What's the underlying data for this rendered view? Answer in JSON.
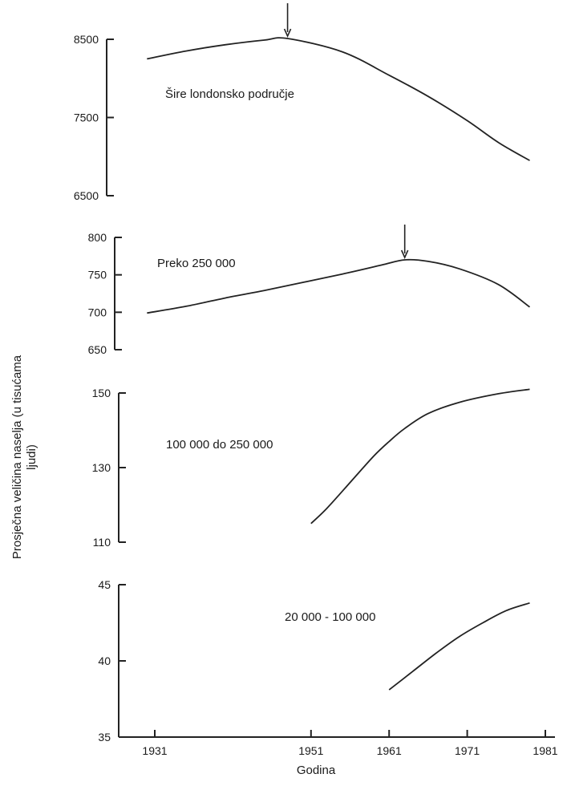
{
  "chart_data": {
    "type": "line",
    "ylabel_lines": [
      "Prosječna veličina naselja (u tisućama",
      "ljudi)"
    ],
    "xlabel": "Godina",
    "x_ticks": [
      "1931",
      "1951",
      "1961",
      "1971",
      "1981"
    ],
    "x_tick_values": [
      1931,
      1951,
      1961,
      1971,
      1981
    ],
    "line_color": "#222222",
    "panels": [
      {
        "name": "Šire londonsko područje",
        "y_ticks": [
          "8500",
          "7500",
          "6500"
        ],
        "y_tick_values": [
          8500,
          7500,
          6500
        ],
        "ylim": [
          6500,
          8500
        ],
        "x": [
          1930,
          1935,
          1940,
          1945,
          1948,
          1955,
          1961,
          1966,
          1971,
          1975,
          1979
        ],
        "y": [
          8250,
          8350,
          8430,
          8490,
          8510,
          8340,
          8040,
          7770,
          7460,
          7180,
          6950
        ],
        "peak_marker_x": 1948
      },
      {
        "name": "Preko 250 000",
        "y_ticks": [
          "800",
          "750",
          "700",
          "650"
        ],
        "y_tick_values": [
          800,
          750,
          700,
          650
        ],
        "ylim": [
          650,
          800
        ],
        "x": [
          1930,
          1935,
          1940,
          1945,
          1950,
          1955,
          1960,
          1963,
          1966,
          1970,
          1975,
          1979
        ],
        "y": [
          699,
          708,
          719,
          729,
          740,
          751,
          763,
          770,
          768,
          758,
          737,
          707
        ],
        "peak_marker_x": 1963
      },
      {
        "name": "100 000 do 250 000",
        "y_ticks": [
          "150",
          "130",
          "110"
        ],
        "y_tick_values": [
          150,
          130,
          110
        ],
        "ylim": [
          110,
          150
        ],
        "x": [
          1951,
          1953,
          1956,
          1959,
          1961,
          1963,
          1966,
          1970,
          1975,
          1979
        ],
        "y": [
          115,
          119,
          126,
          133,
          137,
          140.5,
          144.5,
          147.5,
          149.8,
          151
        ]
      },
      {
        "name": "20 000 - 100 000",
        "y_ticks": [
          "45",
          "40",
          "35"
        ],
        "y_tick_values": [
          45,
          40,
          35
        ],
        "ylim": [
          35,
          45
        ],
        "x": [
          1961,
          1964,
          1967,
          1970,
          1973,
          1976,
          1979
        ],
        "y": [
          38.1,
          39.3,
          40.5,
          41.6,
          42.5,
          43.3,
          43.8
        ]
      }
    ]
  }
}
